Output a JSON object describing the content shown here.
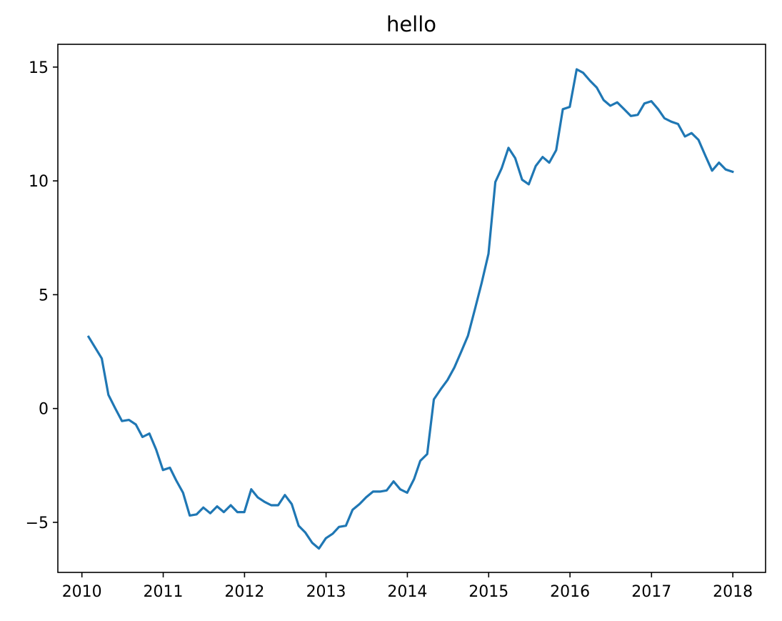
{
  "chart_data": {
    "type": "line",
    "title": "hello",
    "xlabel": "",
    "ylabel": "",
    "x_axis": {
      "type": "date",
      "range": [
        "2009-09-15",
        "2018-05-28"
      ],
      "ticks": [
        "2010-01-01",
        "2011-01-01",
        "2012-01-01",
        "2013-01-01",
        "2014-01-01",
        "2015-01-01",
        "2016-01-01",
        "2017-01-01",
        "2018-01-01"
      ],
      "tick_labels": [
        "2010",
        "2011",
        "2012",
        "2013",
        "2014",
        "2015",
        "2016",
        "2017",
        "2018"
      ]
    },
    "y_axis": {
      "range": [
        -7.2,
        16.0
      ],
      "ticks": [
        -5,
        0,
        5,
        10,
        15
      ],
      "tick_labels": [
        "−5",
        "0",
        "5",
        "10",
        "15"
      ]
    },
    "grid": false,
    "series": [
      {
        "color": "#1f77b4",
        "x": [
          "2010-01-31",
          "2010-02-28",
          "2010-03-31",
          "2010-04-30",
          "2010-05-31",
          "2010-06-30",
          "2010-07-31",
          "2010-08-31",
          "2010-09-30",
          "2010-10-31",
          "2010-11-30",
          "2010-12-31",
          "2011-01-31",
          "2011-02-28",
          "2011-03-31",
          "2011-04-30",
          "2011-05-31",
          "2011-06-30",
          "2011-07-31",
          "2011-08-31",
          "2011-09-30",
          "2011-10-31",
          "2011-11-30",
          "2011-12-31",
          "2012-01-31",
          "2012-02-29",
          "2012-03-31",
          "2012-04-30",
          "2012-05-31",
          "2012-06-30",
          "2012-07-31",
          "2012-08-31",
          "2012-09-30",
          "2012-10-31",
          "2012-11-30",
          "2012-12-31",
          "2013-01-31",
          "2013-02-28",
          "2013-03-31",
          "2013-04-30",
          "2013-05-31",
          "2013-06-30",
          "2013-07-31",
          "2013-08-31",
          "2013-09-30",
          "2013-10-31",
          "2013-11-30",
          "2013-12-31",
          "2014-01-31",
          "2014-02-28",
          "2014-03-31",
          "2014-04-30",
          "2014-05-31",
          "2014-06-30",
          "2014-07-31",
          "2014-08-31",
          "2014-09-30",
          "2014-10-31",
          "2014-11-30",
          "2014-12-31",
          "2015-01-31",
          "2015-02-28",
          "2015-03-31",
          "2015-04-30",
          "2015-05-31",
          "2015-06-30",
          "2015-07-31",
          "2015-08-31",
          "2015-09-30",
          "2015-10-31",
          "2015-11-30",
          "2015-12-31",
          "2016-01-31",
          "2016-02-29",
          "2016-03-31",
          "2016-04-30",
          "2016-05-31",
          "2016-06-30",
          "2016-07-31",
          "2016-08-31",
          "2016-09-30",
          "2016-10-31",
          "2016-11-30",
          "2016-12-31",
          "2017-01-31",
          "2017-02-28",
          "2017-03-31",
          "2017-04-30",
          "2017-05-31",
          "2017-06-30",
          "2017-07-31",
          "2017-08-31",
          "2017-09-30",
          "2017-10-31",
          "2017-11-30",
          "2017-12-31"
        ],
        "y": [
          3.15,
          2.7,
          2.2,
          0.6,
          0.0,
          -0.55,
          -0.5,
          -0.7,
          -1.25,
          -1.1,
          -1.8,
          -2.7,
          -2.6,
          -3.15,
          -3.7,
          -4.7,
          -4.65,
          -4.35,
          -4.6,
          -4.3,
          -4.55,
          -4.25,
          -4.55,
          -4.55,
          -3.55,
          -3.9,
          -4.1,
          -4.25,
          -4.25,
          -3.8,
          -4.2,
          -5.15,
          -5.45,
          -5.9,
          -6.15,
          -5.7,
          -5.5,
          -5.2,
          -5.15,
          -4.45,
          -4.2,
          -3.9,
          -3.65,
          -3.65,
          -3.6,
          -3.2,
          -3.55,
          -3.7,
          -3.1,
          -2.3,
          -2.0,
          0.4,
          0.85,
          1.25,
          1.8,
          2.5,
          3.2,
          4.35,
          5.5,
          6.8,
          9.95,
          10.55,
          11.45,
          11.0,
          10.05,
          9.85,
          10.65,
          11.05,
          10.8,
          11.35,
          13.15,
          13.25,
          14.9,
          14.75,
          14.4,
          14.1,
          13.55,
          13.3,
          13.45,
          13.15,
          12.85,
          12.9,
          13.4,
          13.5,
          13.15,
          12.75,
          12.6,
          12.5,
          11.95,
          12.1,
          11.8,
          11.1,
          10.45,
          10.8,
          10.5,
          10.4
        ]
      }
    ]
  }
}
